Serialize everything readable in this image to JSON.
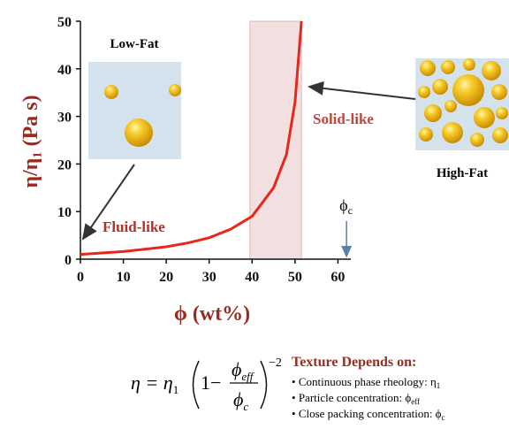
{
  "chart_data": {
    "type": "line",
    "y_label": "η/η₁ (Pa s)",
    "x_label": "ϕ (wt%)",
    "x": [
      0,
      5,
      10,
      15,
      20,
      25,
      30,
      35,
      40,
      45,
      48,
      50,
      51.5
    ],
    "values": [
      1,
      1.3,
      1.6,
      2.1,
      2.6,
      3.4,
      4.5,
      6.3,
      9,
      15,
      22,
      33,
      50
    ],
    "color": "#e8261c",
    "xlim": [
      0,
      63
    ],
    "xticks": [
      0,
      10,
      20,
      30,
      40,
      50,
      60
    ],
    "ylim": [
      0,
      50
    ],
    "yticks": [
      0,
      10,
      20,
      30,
      40,
      50
    ],
    "shaded_region": [
      39.5,
      51.5
    ],
    "critical": {
      "symbol": "ϕ",
      "sub": "c",
      "x": 62
    },
    "annotations": {
      "low_fat": "Low-Fat",
      "high_fat": "High-Fat",
      "solid": "Solid-like",
      "fluid": "Fluid-like"
    }
  },
  "formula": {
    "lhs": "η = η",
    "lhs_sub": "1",
    "one_minus": "1−",
    "num": "ϕ",
    "num_sub": "eff",
    "den": "ϕ",
    "den_sub": "c",
    "exponent": "−2"
  },
  "texture": {
    "title": "Texture Depends on:",
    "items": [
      {
        "text": "Continuous phase rheology:  η",
        "sub": "1"
      },
      {
        "text": "Particle concentration: ϕ",
        "sub": "eff"
      },
      {
        "text": "Close packing concentration: ϕ",
        "sub": "c"
      }
    ]
  }
}
